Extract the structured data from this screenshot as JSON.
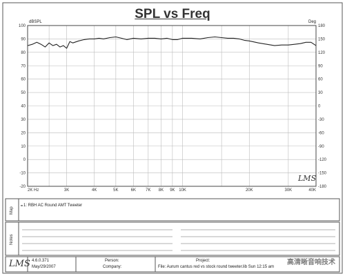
{
  "title": "SPL vs Freq",
  "left_axis_label": "dBSPL",
  "right_axis_label": "Deg",
  "panel_labels": {
    "map": "Map",
    "notes": "Notes"
  },
  "legend_entry": "1: RBH AC Round AMT Tweeter",
  "logo_text": "LMS",
  "footer": {
    "version": "4.6.0.371",
    "date": "May/29/2007",
    "person_label": "Person:",
    "company_label": "Company:",
    "project_label": "Project:",
    "file_text": "File: Aurum cantus red vs stock round tweeter.lib  Sun 12:15 am"
  },
  "watermark": "高清晰音响技术",
  "colors": {
    "curve": "#222222",
    "grid": "#bbbbbb",
    "frame": "#444444"
  },
  "chart_data": {
    "type": "line",
    "title": "SPL vs Freq",
    "x_scale": "log",
    "xlim": [
      2000,
      40000
    ],
    "ylim": [
      -20,
      100
    ],
    "y2lim": [
      -180,
      180
    ],
    "x_ticks": [
      {
        "v": 2000,
        "label": "2K Hz"
      },
      {
        "v": 3000,
        "label": "3K"
      },
      {
        "v": 4000,
        "label": "4K"
      },
      {
        "v": 5000,
        "label": "5K"
      },
      {
        "v": 6000,
        "label": "6K"
      },
      {
        "v": 7000,
        "label": "7K"
      },
      {
        "v": 8000,
        "label": "8K"
      },
      {
        "v": 9000,
        "label": "9K"
      },
      {
        "v": 10000,
        "label": "10K"
      },
      {
        "v": 20000,
        "label": "20K"
      },
      {
        "v": 30000,
        "label": "30K"
      },
      {
        "v": 40000,
        "label": "40K"
      }
    ],
    "y_ticks": [
      "100",
      "90",
      "80",
      "70",
      "60",
      "50",
      "40",
      "30",
      "20",
      "10",
      "0",
      "-10",
      "-20"
    ],
    "y2_ticks": [
      "180",
      "150",
      "120",
      "90",
      "60",
      "30",
      "0",
      "-30",
      "-60",
      "-90",
      "-120",
      "-150",
      "-180"
    ],
    "grid": true,
    "series": [
      {
        "name": "1: RBH AC Round AMT Tweeter",
        "x": [
          2000,
          2100,
          2200,
          2300,
          2400,
          2500,
          2600,
          2700,
          2800,
          2900,
          3000,
          3100,
          3200,
          3400,
          3600,
          3800,
          4000,
          4200,
          4400,
          4700,
          5000,
          5300,
          5600,
          6000,
          6500,
          7000,
          7500,
          8000,
          8500,
          9000,
          9500,
          10000,
          11000,
          12000,
          13000,
          14000,
          15000,
          16000,
          17000,
          18000,
          19000,
          20000,
          22000,
          24000,
          26000,
          28000,
          30000,
          32000,
          34000,
          36000,
          38000,
          40000
        ],
        "values": [
          85,
          86,
          87.5,
          86,
          84,
          87,
          85,
          86,
          84,
          85,
          83,
          88,
          87,
          88.5,
          89.5,
          90,
          90,
          90.5,
          90,
          91,
          91.5,
          90.5,
          89.5,
          90.5,
          90,
          90.5,
          90.5,
          90,
          90.5,
          89.5,
          89.5,
          90.5,
          90.5,
          90,
          91,
          91.5,
          91,
          90.5,
          90.5,
          90,
          89,
          88.5,
          87,
          86,
          85,
          85.5,
          85.5,
          86,
          86.5,
          87.5,
          87.5,
          85
        ]
      }
    ]
  }
}
